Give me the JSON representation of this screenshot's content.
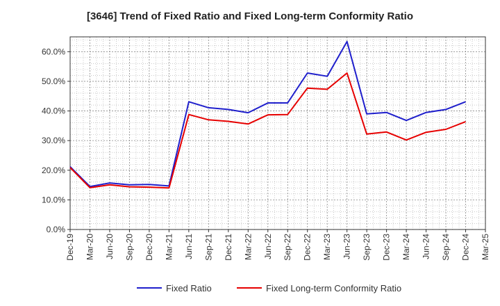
{
  "chart_data": {
    "type": "line",
    "title": "[3646]  Trend of Fixed Ratio and Fixed Long-term Conformity Ratio",
    "xlabel": "",
    "ylabel": "",
    "x": [
      "Dec-19",
      "Mar-20",
      "Jun-20",
      "Sep-20",
      "Dec-20",
      "Mar-21",
      "Jun-21",
      "Sep-21",
      "Dec-21",
      "Mar-22",
      "Jun-22",
      "Sep-22",
      "Dec-22",
      "Mar-23",
      "Jun-23",
      "Sep-23",
      "Dec-23",
      "Mar-24",
      "Jun-24",
      "Sep-24",
      "Dec-24"
    ],
    "x_ticks": [
      "Dec-19",
      "Mar-20",
      "Jun-20",
      "Sep-20",
      "Dec-20",
      "Mar-21",
      "Jun-21",
      "Sep-21",
      "Dec-21",
      "Mar-22",
      "Jun-22",
      "Sep-22",
      "Dec-22",
      "Mar-23",
      "Jun-23",
      "Sep-23",
      "Dec-23",
      "Mar-24",
      "Jun-24",
      "Sep-24",
      "Dec-24",
      "Mar-25"
    ],
    "y_ticks": [
      "0.0%",
      "10.0%",
      "20.0%",
      "30.0%",
      "40.0%",
      "50.0%",
      "60.0%"
    ],
    "ylim": [
      0,
      65
    ],
    "grid": true,
    "legend_position": "bottom",
    "series": [
      {
        "name": "Fixed Ratio",
        "color": "#1f1fcc",
        "values": [
          21.2,
          14.5,
          15.7,
          15.1,
          15.2,
          14.7,
          43.1,
          41.1,
          40.5,
          39.4,
          42.7,
          42.7,
          52.8,
          51.7,
          63.4,
          39.0,
          39.5,
          36.8,
          39.5,
          40.5,
          43.1
        ]
      },
      {
        "name": "Fixed Long-term Conformity Ratio",
        "color": "#e60000",
        "values": [
          20.9,
          14.1,
          15.1,
          14.4,
          14.3,
          14.0,
          38.8,
          37.0,
          36.5,
          35.6,
          38.7,
          38.8,
          47.7,
          47.3,
          52.8,
          32.2,
          32.9,
          30.2,
          32.8,
          33.8,
          36.4
        ]
      }
    ]
  }
}
